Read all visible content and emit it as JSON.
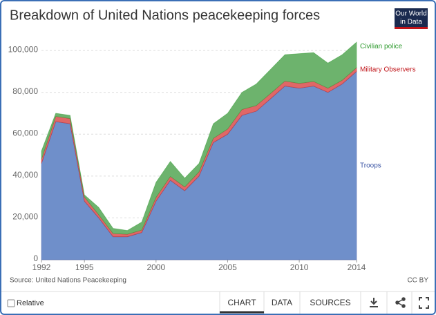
{
  "chart_data": {
    "type": "stacked_area",
    "title": "Breakdown of United Nations peacekeeping forces",
    "source": "Source: United Nations Peacekeeping",
    "license": "CC BY",
    "x": [
      1992,
      1993,
      1994,
      1995,
      1996,
      1997,
      1998,
      1999,
      2000,
      2001,
      2002,
      2003,
      2004,
      2005,
      2006,
      2007,
      2008,
      2009,
      2010,
      2011,
      2012,
      2013,
      2014
    ],
    "series": [
      {
        "name": "Troops",
        "color": "#6f8fca",
        "label_color": "#3a54a4",
        "values": [
          46000,
          66000,
          65000,
          28000,
          20000,
          11000,
          11000,
          13000,
          28000,
          38000,
          33000,
          40000,
          56000,
          60000,
          69000,
          71000,
          77000,
          83000,
          82000,
          83000,
          80000,
          84000,
          90000
        ]
      },
      {
        "name": "Military Observers",
        "color": "#e06767",
        "label_color": "#c0151a",
        "values": [
          2000,
          2500,
          2500,
          2000,
          1500,
          1500,
          1200,
          1200,
          1800,
          1800,
          1800,
          2000,
          2000,
          2500,
          2800,
          2700,
          2500,
          2400,
          2300,
          2200,
          2000,
          1800,
          1800
        ]
      },
      {
        "name": "Civilian police",
        "color": "#6db36d",
        "label_color": "#2e9a2e",
        "values": [
          4000,
          1500,
          1500,
          1000,
          3500,
          2500,
          1800,
          3800,
          7200,
          7200,
          4200,
          4000,
          7000,
          7500,
          8200,
          10300,
          11500,
          12600,
          14200,
          13800,
          12000,
          12200,
          12200
        ]
      }
    ],
    "xlim": [
      1992,
      2014
    ],
    "xticks": [
      1992,
      1995,
      2000,
      2005,
      2010,
      2014
    ],
    "ylim": [
      0,
      104000
    ],
    "yticks": [
      0,
      {
        "value": 20000,
        "label": "20,000"
      },
      {
        "value": 40000,
        "label": "40,000"
      },
      {
        "value": 60000,
        "label": "60,000"
      },
      {
        "value": 80000,
        "label": "80,000"
      },
      {
        "value": 100000,
        "label": "100,000"
      }
    ],
    "grid": true
  },
  "ui": {
    "logo": [
      "Our World",
      "in Data"
    ],
    "relative": "Relative",
    "tabs": [
      "CHART",
      "DATA",
      "SOURCES"
    ]
  }
}
